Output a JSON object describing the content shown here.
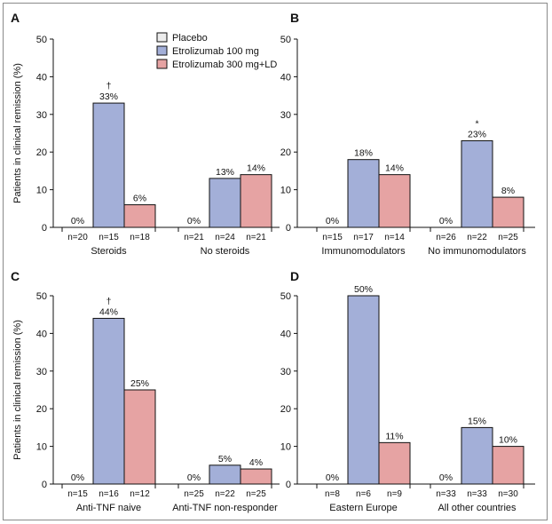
{
  "ylabel": "Patients in clinical remission (%)",
  "legend": [
    {
      "label": "Placebo",
      "color": "#ececec"
    },
    {
      "label": "Etrolizumab 100 mg",
      "color": "#a3afd8"
    },
    {
      "label": "Etrolizumab 300 mg+LD",
      "color": "#e6a3a3"
    }
  ],
  "chart_data": [
    {
      "type": "bar",
      "panel": "A",
      "ylabel": "Patients in clinical remission (%)",
      "ylim": [
        0,
        50
      ],
      "yticks": [
        0,
        10,
        20,
        30,
        40,
        50
      ],
      "categories": [
        "Steroids",
        "No steroids"
      ],
      "series": [
        {
          "name": "Placebo",
          "values": [
            0,
            0
          ]
        },
        {
          "name": "Etrolizumab 100 mg",
          "values": [
            33,
            13
          ]
        },
        {
          "name": "Etrolizumab 300 mg+LD",
          "values": [
            6,
            14
          ]
        }
      ],
      "data_labels": [
        [
          "0%",
          "33%",
          "6%"
        ],
        [
          "0%",
          "13%",
          "14%"
        ]
      ],
      "n_labels": [
        [
          "n=20",
          "n=15",
          "n=18"
        ],
        [
          "n=21",
          "n=24",
          "n=21"
        ]
      ],
      "markers": [
        [
          "",
          "†",
          ""
        ],
        [
          "",
          "",
          ""
        ]
      ]
    },
    {
      "type": "bar",
      "panel": "B",
      "ylim": [
        0,
        50
      ],
      "yticks": [
        0,
        10,
        20,
        30,
        40,
        50
      ],
      "categories": [
        "Immunomodulators",
        "No immunomodulators"
      ],
      "series": [
        {
          "name": "Placebo",
          "values": [
            0,
            0
          ]
        },
        {
          "name": "Etrolizumab 100 mg",
          "values": [
            18,
            23
          ]
        },
        {
          "name": "Etrolizumab 300 mg+LD",
          "values": [
            14,
            8
          ]
        }
      ],
      "data_labels": [
        [
          "0%",
          "18%",
          "14%"
        ],
        [
          "0%",
          "23%",
          "8%"
        ]
      ],
      "n_labels": [
        [
          "n=15",
          "n=17",
          "n=14"
        ],
        [
          "n=26",
          "n=22",
          "n=25"
        ]
      ],
      "markers": [
        [
          "",
          "",
          ""
        ],
        [
          "",
          "*",
          ""
        ]
      ]
    },
    {
      "type": "bar",
      "panel": "C",
      "ylabel": "Patients in clinical remission (%)",
      "ylim": [
        0,
        50
      ],
      "yticks": [
        0,
        10,
        20,
        30,
        40,
        50
      ],
      "categories": [
        "Anti-TNF naive",
        "Anti-TNF non-responder"
      ],
      "series": [
        {
          "name": "Placebo",
          "values": [
            0,
            0
          ]
        },
        {
          "name": "Etrolizumab 100 mg",
          "values": [
            44,
            5
          ]
        },
        {
          "name": "Etrolizumab 300 mg+LD",
          "values": [
            25,
            4
          ]
        }
      ],
      "data_labels": [
        [
          "0%",
          "44%",
          "25%"
        ],
        [
          "0%",
          "5%",
          "4%"
        ]
      ],
      "n_labels": [
        [
          "n=15",
          "n=16",
          "n=12"
        ],
        [
          "n=25",
          "n=22",
          "n=25"
        ]
      ],
      "markers": [
        [
          "",
          "†",
          ""
        ],
        [
          "",
          "",
          ""
        ]
      ]
    },
    {
      "type": "bar",
      "panel": "D",
      "ylim": [
        0,
        50
      ],
      "yticks": [
        0,
        10,
        20,
        30,
        40,
        50
      ],
      "categories": [
        "Eastern Europe",
        "All other countries"
      ],
      "series": [
        {
          "name": "Placebo",
          "values": [
            0,
            0
          ]
        },
        {
          "name": "Etrolizumab 100 mg",
          "values": [
            50,
            15
          ]
        },
        {
          "name": "Etrolizumab 300 mg+LD",
          "values": [
            11,
            10
          ]
        }
      ],
      "data_labels": [
        [
          "0%",
          "50%",
          "11%"
        ],
        [
          "0%",
          "15%",
          "10%"
        ]
      ],
      "n_labels": [
        [
          "n=8",
          "n=6",
          "n=9"
        ],
        [
          "n=33",
          "n=33",
          "n=30"
        ]
      ],
      "markers": [
        [
          "",
          "",
          ""
        ],
        [
          "",
          "",
          ""
        ]
      ]
    }
  ]
}
